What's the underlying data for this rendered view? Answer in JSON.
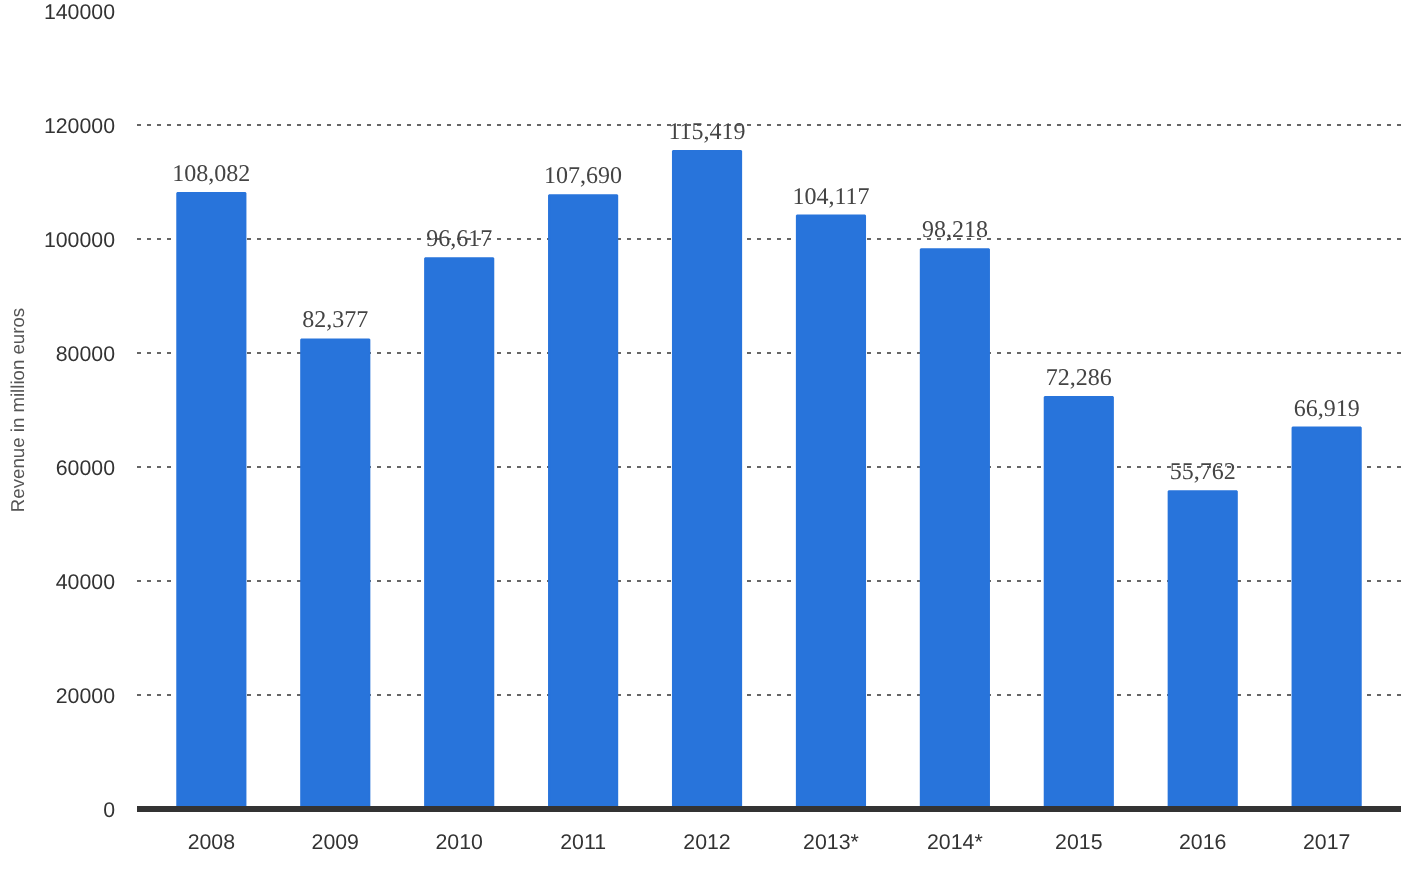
{
  "chart_data": {
    "type": "bar",
    "ylabel": "Revenue in million euros",
    "categories": [
      "2008",
      "2009",
      "2010",
      "2011",
      "2012",
      "2013*",
      "2014*",
      "2015",
      "2016",
      "2017"
    ],
    "values": [
      108082,
      82377,
      96617,
      107690,
      115419,
      104117,
      98218,
      72286,
      55762,
      66919
    ],
    "value_labels": [
      "108,082",
      "82,377",
      "96,617",
      "107,690",
      "115,419",
      "104,117",
      "98,218",
      "72,286",
      "55,762",
      "66,919"
    ],
    "color": "#2874db",
    "ylim": [
      0,
      140000
    ],
    "yticks": [
      0,
      20000,
      40000,
      60000,
      80000,
      100000,
      120000,
      140000
    ],
    "grid": "y"
  }
}
